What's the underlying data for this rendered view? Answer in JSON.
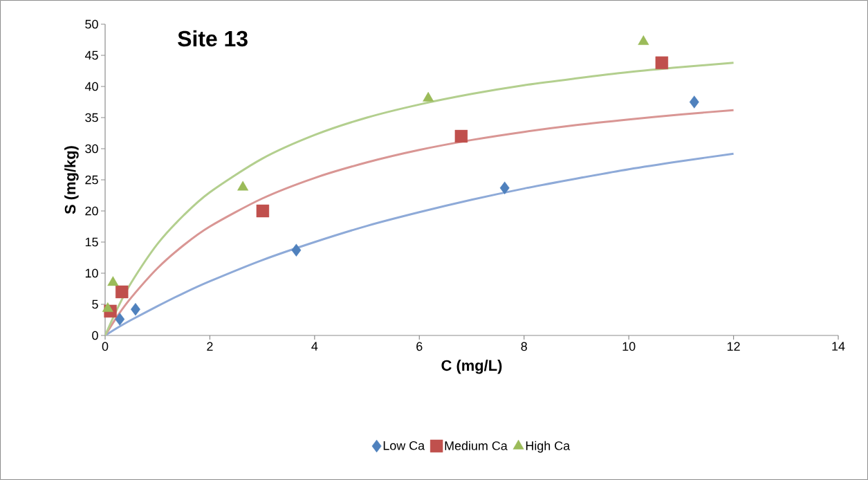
{
  "chart_data": {
    "type": "scatter",
    "title": "Site 13",
    "xlabel": "C (mg/L)",
    "ylabel": "S (mg/kg)",
    "xlim": [
      0,
      14
    ],
    "ylim": [
      0,
      50
    ],
    "xticks": [
      0,
      2,
      4,
      6,
      8,
      10,
      12,
      14
    ],
    "yticks": [
      0,
      5,
      10,
      15,
      20,
      25,
      30,
      35,
      40,
      45,
      50
    ],
    "grid": false,
    "legend": "bottom",
    "series": [
      {
        "type": "line",
        "color": "#8eaad8",
        "line_style": "solid",
        "marker": "none",
        "x": [
          0,
          0.25,
          0.5,
          1,
          1.5,
          2,
          3,
          4,
          5,
          6,
          7,
          8,
          9,
          10,
          11,
          12
        ],
        "values": [
          0,
          1.3,
          2.5,
          4.7,
          6.8,
          8.7,
          12.1,
          15.0,
          17.6,
          19.8,
          21.8,
          23.6,
          25.2,
          26.7,
          28.0,
          29.2
        ]
      },
      {
        "type": "line",
        "color": "#d99694",
        "line_style": "solid",
        "marker": "none",
        "x": [
          0,
          0.25,
          0.5,
          1,
          1.5,
          2,
          3,
          4,
          5,
          6,
          7,
          8,
          9,
          10,
          11,
          12
        ],
        "values": [
          0,
          3.3,
          6.1,
          10.8,
          14.5,
          17.5,
          22.0,
          25.3,
          27.8,
          29.8,
          31.4,
          32.7,
          33.8,
          34.7,
          35.5,
          36.2
        ]
      },
      {
        "type": "line",
        "color": "#b3cf8e",
        "line_style": "solid",
        "marker": "none",
        "x": [
          0,
          0.25,
          0.5,
          1,
          1.5,
          2,
          3,
          4,
          5,
          6,
          7,
          8,
          9,
          10,
          11,
          12
        ],
        "values": [
          0,
          4.6,
          8.5,
          14.7,
          19.3,
          23.0,
          28.4,
          32.2,
          35.0,
          37.1,
          38.8,
          40.2,
          41.3,
          42.3,
          43.1,
          43.8
        ]
      },
      {
        "name": "Low Ca",
        "color": "#4f81bd",
        "marker": "diamond",
        "x": [
          0.28,
          0.58,
          3.65,
          7.63,
          11.25
        ],
        "values": [
          2.6,
          4.2,
          13.7,
          23.7,
          37.5
        ]
      },
      {
        "name": "Medium Ca",
        "color": "#c0504d",
        "marker": "square",
        "x": [
          0.1,
          0.32,
          3.01,
          6.8,
          10.63
        ],
        "values": [
          3.9,
          7.0,
          20.0,
          32.0,
          43.8
        ]
      },
      {
        "name": "High Ca",
        "color": "#9bbb59",
        "marker": "triangle",
        "x": [
          0.05,
          0.15,
          2.63,
          6.17,
          10.28
        ],
        "values": [
          4.3,
          8.5,
          23.8,
          38.1,
          47.2
        ]
      }
    ]
  }
}
